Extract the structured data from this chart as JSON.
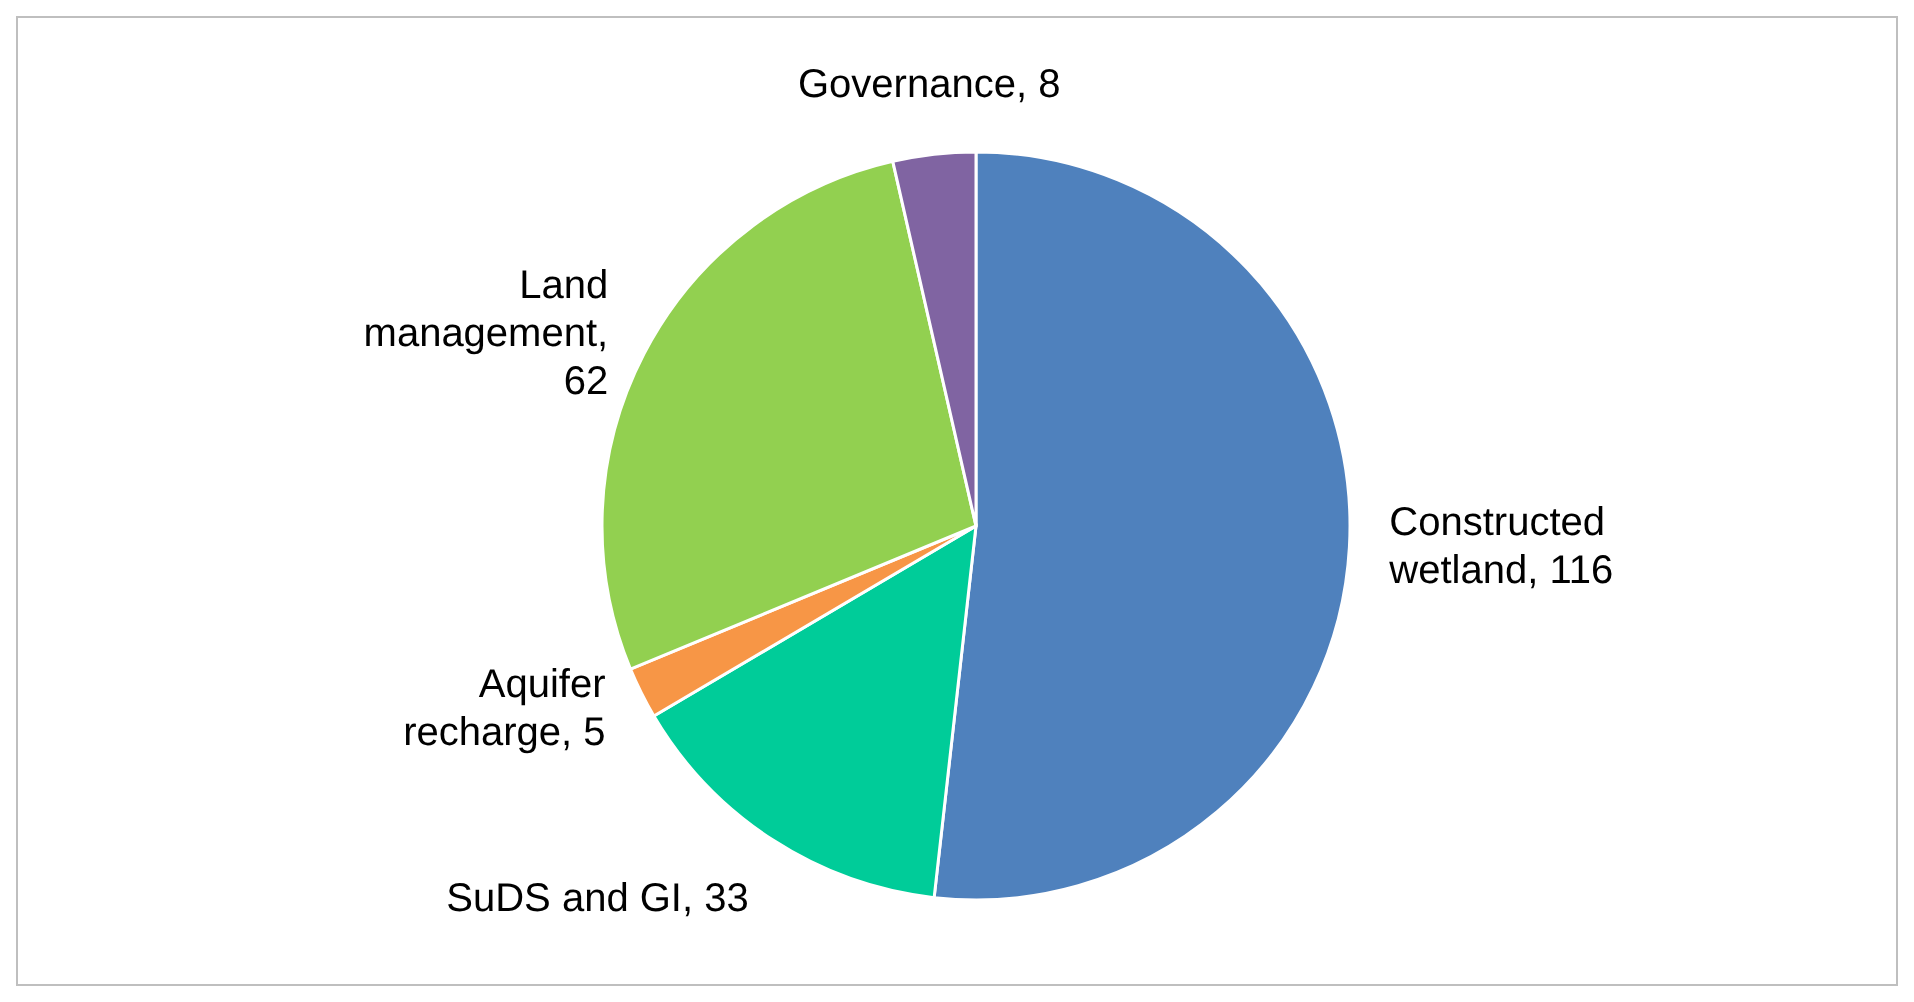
{
  "chart_data": {
    "type": "pie",
    "categories": [
      "Constructed wetland",
      "SuDS and GI",
      "Aquifer recharge",
      "Land management",
      "Governance"
    ],
    "values": [
      116,
      33,
      5,
      62,
      8
    ],
    "value_labels": [
      ", 116",
      ", 33",
      ", 5",
      ", 62",
      ", 8"
    ],
    "colors": [
      "#4f81bd",
      "#00cc99",
      "#f79646",
      "#92d050",
      "#8064a2"
    ]
  }
}
